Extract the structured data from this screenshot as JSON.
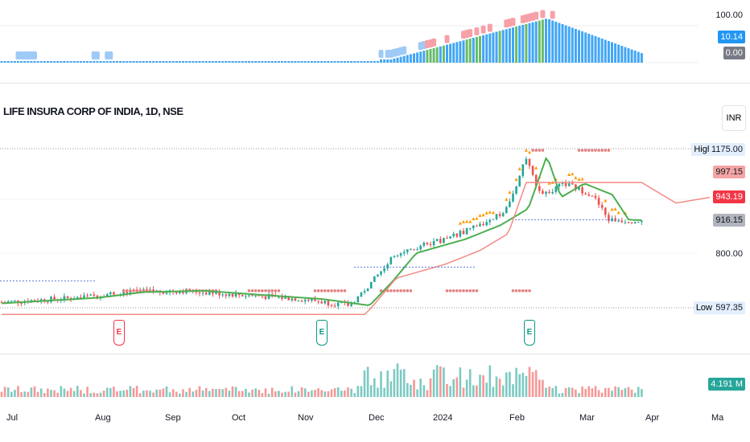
{
  "header": {
    "title": "LIFE INSURA CORP OF INDIA, 1D, NSE",
    "currency": "INR"
  },
  "indicator_pane": {
    "scale": [
      "100.00",
      "10.14",
      "0.00"
    ],
    "colors": {
      "current": "#2196f3",
      "zero": "#787b86"
    }
  },
  "price_scale": {
    "high_label": "High",
    "high": "1175.00",
    "level1": "997.15",
    "last": "943.19",
    "level2": "916.15",
    "tick": "800.00",
    "low_label": "Low",
    "low": "597.35"
  },
  "colors": {
    "up": "#26a69a",
    "down": "#ef5350",
    "ma": "#4caf50",
    "trail": "#f28b82",
    "marker_orange": "#ff9800",
    "marker_blue": "#5b7fd6"
  },
  "volume": {
    "last": "4.191 M"
  },
  "earnings_markers": [
    "E",
    "E",
    "E"
  ],
  "time_axis": [
    "Jul",
    "Aug",
    "Sep",
    "Oct",
    "Nov",
    "Dec",
    "2024",
    "Feb",
    "Mar",
    "Apr",
    "Ma"
  ],
  "chart_data": {
    "type": "candlestick",
    "price_keypoints": [
      [
        "2023-07-01",
        625
      ],
      [
        "2023-08-01",
        640
      ],
      [
        "2023-08-20",
        660
      ],
      [
        "2023-09-15",
        665
      ],
      [
        "2023-10-10",
        650
      ],
      [
        "2023-11-05",
        635
      ],
      [
        "2023-11-25",
        612
      ],
      [
        "2023-12-05",
        700
      ],
      [
        "2023-12-15",
        800
      ],
      [
        "2024-01-05",
        850
      ],
      [
        "2024-01-20",
        900
      ],
      [
        "2024-02-01",
        960
      ],
      [
        "2024-02-09",
        1150
      ],
      [
        "2024-02-15",
        1000
      ],
      [
        "2024-02-25",
        1050
      ],
      [
        "2024-03-08",
        1010
      ],
      [
        "2024-03-15",
        920
      ],
      [
        "2024-03-28",
        916
      ]
    ]
  }
}
